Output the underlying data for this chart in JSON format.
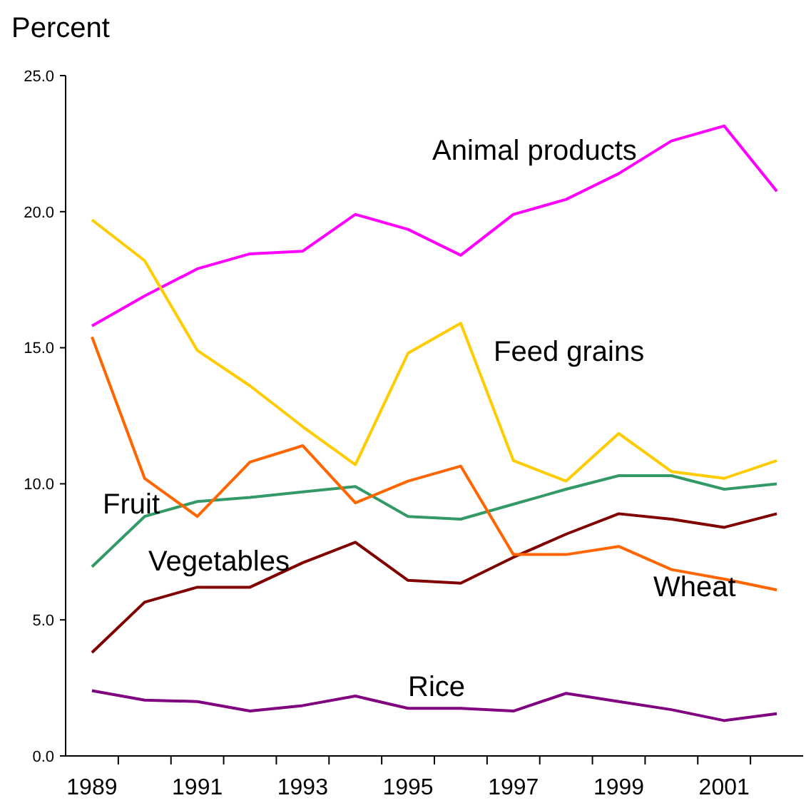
{
  "chart_data": {
    "type": "line",
    "ylabel": "Percent",
    "categories": [
      "1989",
      null,
      "1991",
      null,
      "1993",
      null,
      "1995",
      null,
      "1997",
      null,
      "1999",
      null,
      "2001",
      null
    ],
    "ylim": [
      0,
      25
    ],
    "yticks": [
      {
        "value": 0,
        "label": "0.0"
      },
      {
        "value": 5,
        "label": "5.0"
      },
      {
        "value": 10,
        "label": "10.0"
      },
      {
        "value": 15,
        "label": "15.0"
      },
      {
        "value": 20,
        "label": "20.0"
      },
      {
        "value": 25,
        "label": "25.0"
      }
    ],
    "grid": false,
    "legend": false,
    "marker": "none",
    "line_style": "solid",
    "series": [
      {
        "name": "Animal products",
        "color": "#ff00ff",
        "values": [
          15.8,
          16.9,
          17.9,
          18.45,
          18.55,
          19.9,
          19.35,
          18.4,
          19.9,
          20.45,
          21.4,
          22.6,
          23.15,
          20.75
        ]
      },
      {
        "name": "Feed grains",
        "color": "#ffcc00",
        "values": [
          19.7,
          18.2,
          14.9,
          13.6,
          12.1,
          10.7,
          14.8,
          15.9,
          10.85,
          10.1,
          11.85,
          10.45,
          10.2,
          10.85
        ]
      },
      {
        "name": "Fruit",
        "color": "#339966",
        "values": [
          6.95,
          8.8,
          9.35,
          9.5,
          9.7,
          9.9,
          8.8,
          8.7,
          9.25,
          9.8,
          10.3,
          10.3,
          9.8,
          10.0
        ]
      },
      {
        "name": "Vegetables",
        "color": "#800000",
        "values": [
          3.8,
          5.65,
          6.2,
          6.2,
          7.1,
          7.85,
          6.45,
          6.35,
          7.3,
          8.15,
          8.9,
          8.7,
          8.4,
          8.9
        ]
      },
      {
        "name": "Wheat",
        "color": "#ff6600",
        "values": [
          15.4,
          10.2,
          8.8,
          10.8,
          11.4,
          9.3,
          10.1,
          10.65,
          7.4,
          7.4,
          7.7,
          6.85,
          6.5,
          6.1
        ]
      },
      {
        "name": "Rice",
        "color": "#800080",
        "values": [
          2.4,
          2.05,
          2.0,
          1.65,
          1.85,
          2.2,
          1.75,
          1.75,
          1.65,
          2.3,
          2.0,
          1.7,
          1.3,
          1.55
        ]
      }
    ]
  }
}
